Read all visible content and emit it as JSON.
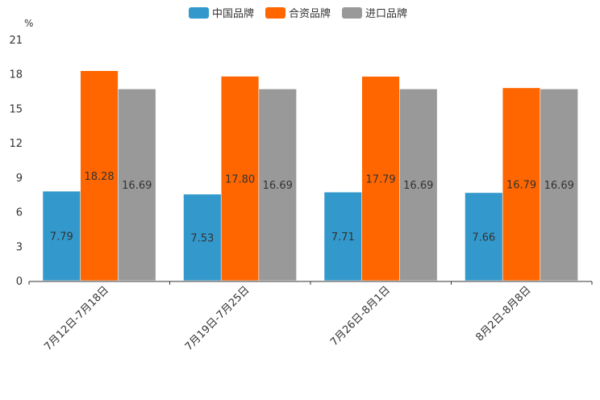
{
  "chart_data": {
    "type": "bar",
    "title": "",
    "xlabel": "",
    "ylabel": "%",
    "ylim": [
      0,
      21
    ],
    "yticks": [
      "0",
      "3",
      "6",
      "9",
      "12",
      "15",
      "18",
      "21"
    ],
    "categories": [
      "7月12日-7月18日",
      "7月19日-7月25日",
      "7月26日-8月1日",
      "8月2日-8月8日"
    ],
    "series": [
      {
        "name": "中国品牌",
        "color": "#3399cc",
        "values": [
          7.79,
          7.53,
          7.71,
          7.66
        ],
        "labels": [
          "7.79",
          "7.53",
          "7.71",
          "7.66"
        ]
      },
      {
        "name": "合资品牌",
        "color": "#ff6600",
        "values": [
          18.28,
          17.8,
          17.79,
          16.79
        ],
        "labels": [
          "18.28",
          "17.80",
          "17.79",
          "16.79"
        ]
      },
      {
        "name": "进口品牌",
        "color": "#999999",
        "values": [
          16.69,
          16.69,
          16.69,
          16.69
        ],
        "labels": [
          "16.69",
          "16.69",
          "16.69",
          "16.69"
        ]
      }
    ],
    "legend_position": "top-center",
    "grid": false
  }
}
